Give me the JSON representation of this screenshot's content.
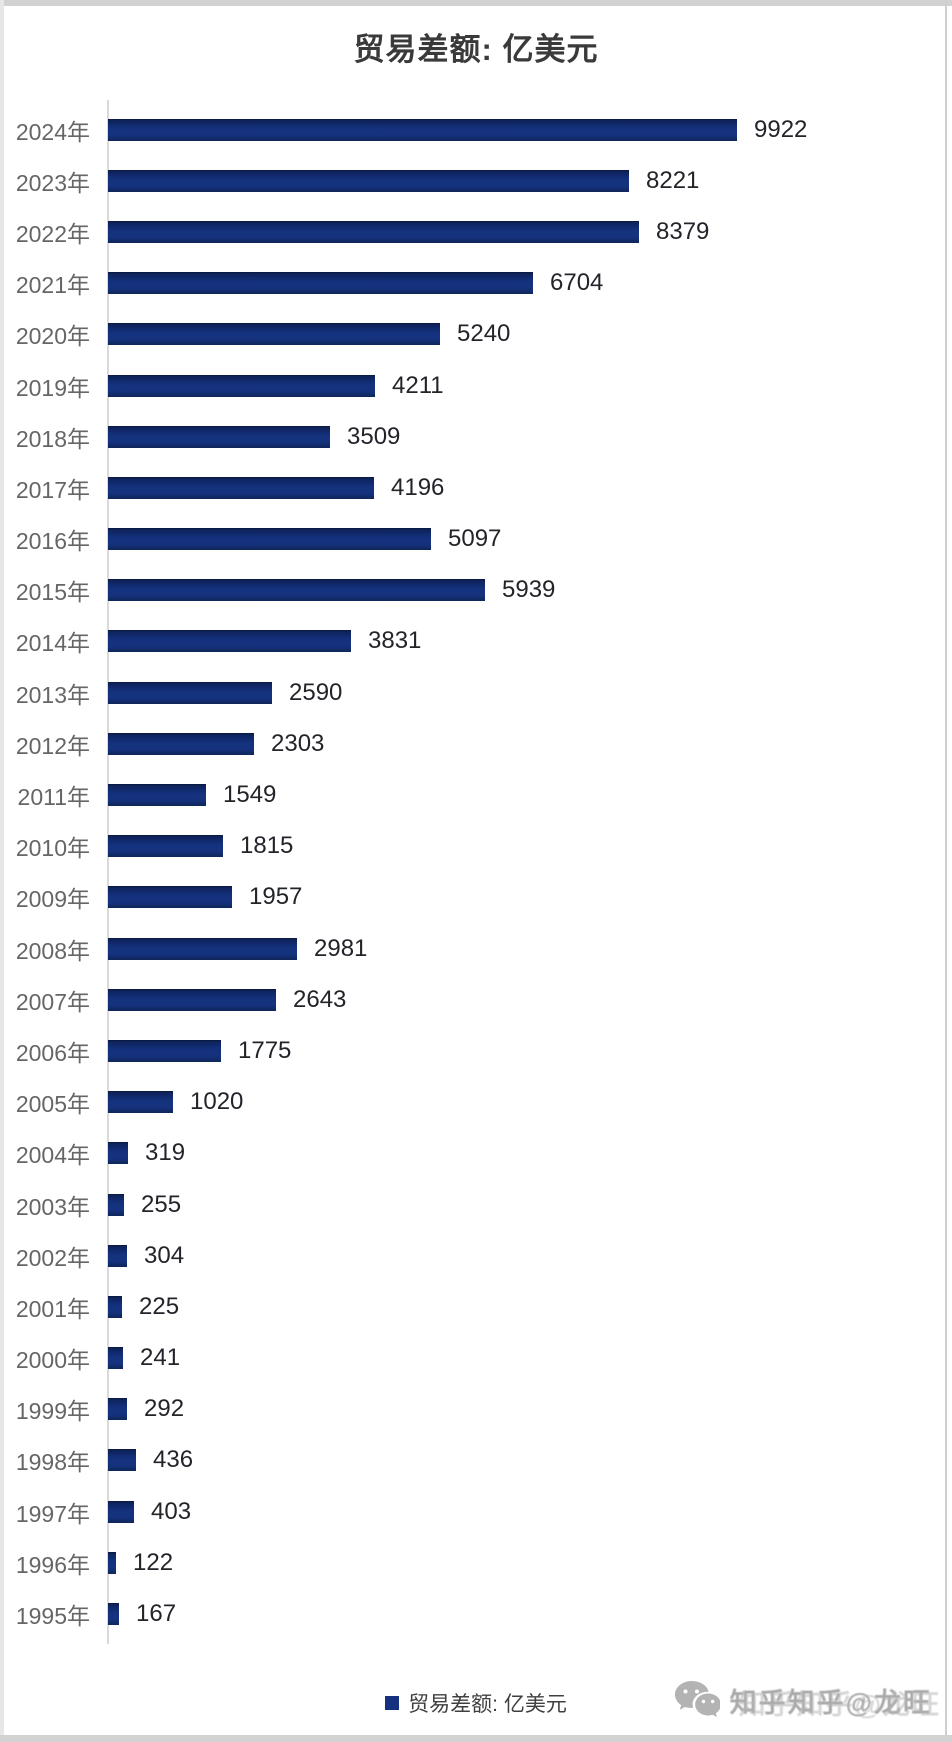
{
  "title": "贸易差额: 亿美元",
  "legend": {
    "label": "贸易差额: 亿美元"
  },
  "watermark": {
    "text": "知乎知乎@龙旺"
  },
  "colors": {
    "bar": "#14307e",
    "bar_dark_edge": "#0a1a42",
    "year_label": "#666666",
    "value_label": "#22242a",
    "axis": "#d9d9d9",
    "title": "#3a3a3a",
    "watermark": "#ababab"
  },
  "chart_data": {
    "type": "bar",
    "orientation": "horizontal",
    "title": "贸易差额: 亿美元",
    "legend_entries": [
      "贸易差额: 亿美元"
    ],
    "legend_position": "bottom",
    "grid": false,
    "xlim": [
      0,
      10000
    ],
    "unit": "亿美元",
    "categories": [
      "2024年",
      "2023年",
      "2022年",
      "2021年",
      "2020年",
      "2019年",
      "2018年",
      "2017年",
      "2016年",
      "2015年",
      "2014年",
      "2013年",
      "2012年",
      "2011年",
      "2010年",
      "2009年",
      "2008年",
      "2007年",
      "2006年",
      "2005年",
      "2004年",
      "2003年",
      "2002年",
      "2001年",
      "2000年",
      "1999年",
      "1998年",
      "1997年",
      "1996年",
      "1995年"
    ],
    "values": [
      9922,
      8221,
      8379,
      6704,
      5240,
      4211,
      3509,
      4196,
      5097,
      5939,
      3831,
      2590,
      2303,
      1549,
      1815,
      1957,
      2981,
      2643,
      1775,
      1020,
      319,
      255,
      304,
      225,
      241,
      292,
      436,
      403,
      122,
      167
    ]
  }
}
